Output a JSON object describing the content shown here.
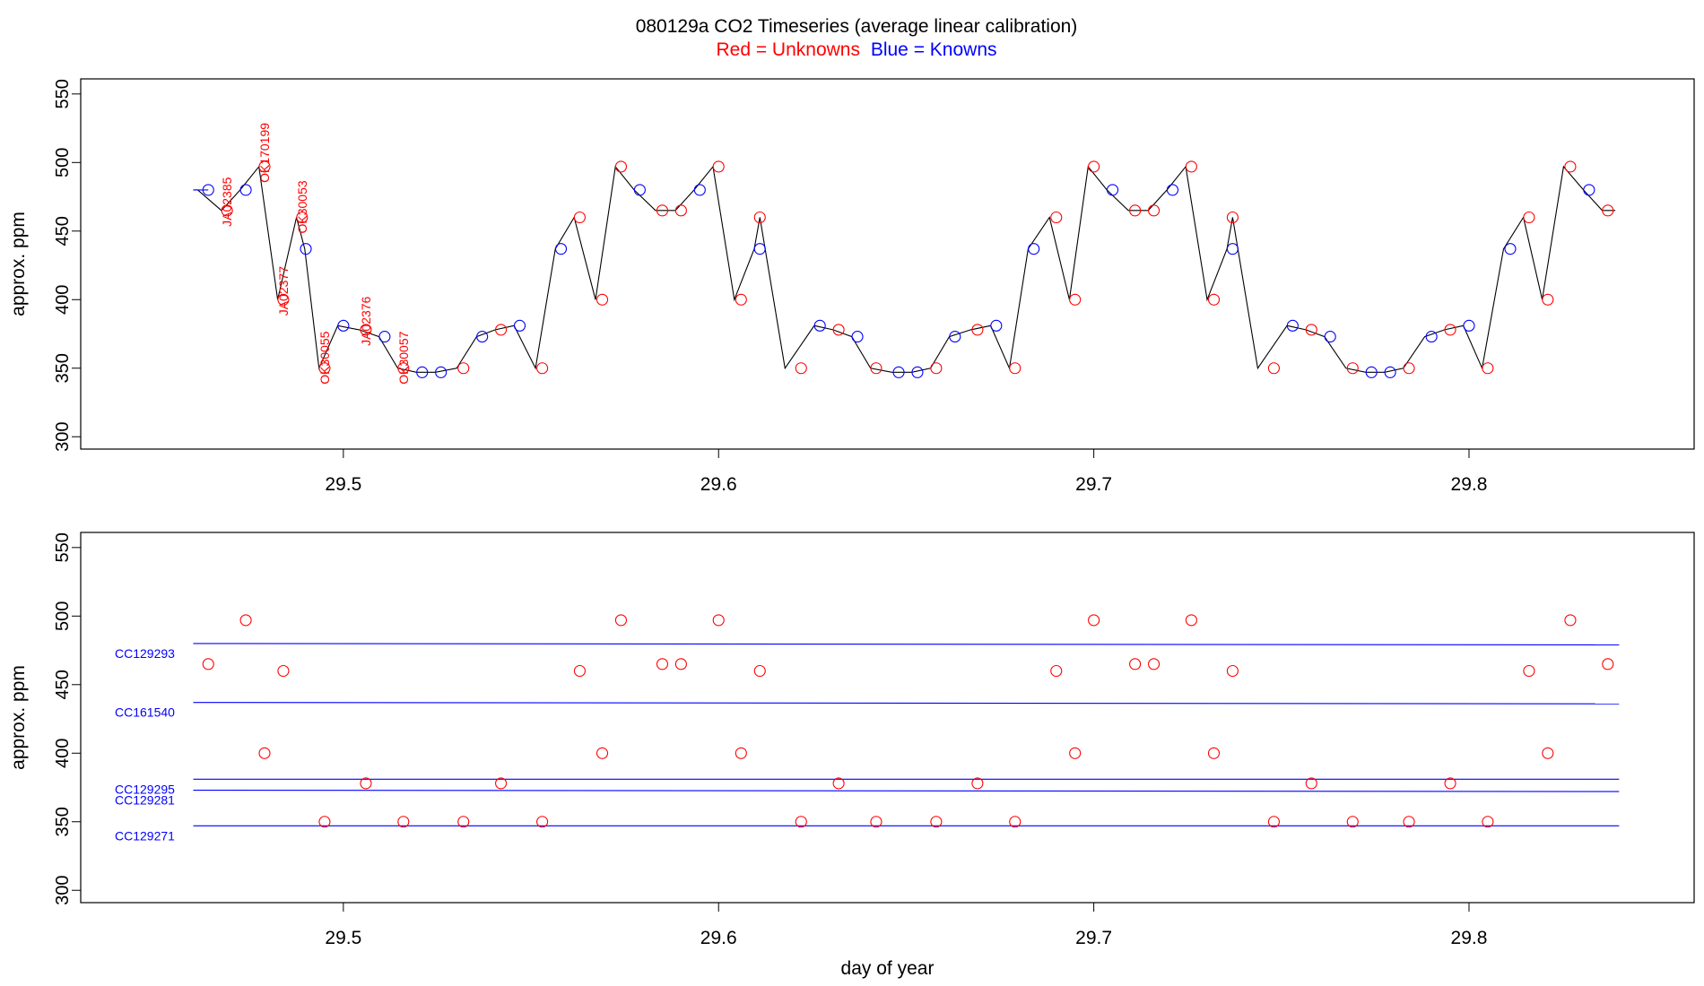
{
  "title": {
    "main": "080129a   CO2 Timeseries (average linear calibration)",
    "legend_red": "Red = Unknowns",
    "legend_blue": "Blue = Knowns"
  },
  "colors": {
    "unknown": "#ff0000",
    "known": "#0000ff",
    "trace": "#000000"
  },
  "chart_data": [
    {
      "type": "line",
      "panel": "top",
      "xlabel": "",
      "ylabel": "approx. ppm",
      "xlim": [
        29.43,
        29.86
      ],
      "ylim": [
        291,
        561
      ],
      "xticks": [
        29.5,
        29.6,
        29.7,
        29.8
      ],
      "yticks": [
        300,
        350,
        400,
        450,
        500,
        550
      ],
      "trace_start": [
        29.46,
        480
      ],
      "knowns": [
        [
          29.464,
          480
        ],
        [
          29.474,
          480
        ],
        [
          29.49,
          437
        ],
        [
          29.5,
          381
        ],
        [
          29.511,
          373
        ],
        [
          29.521,
          347
        ],
        [
          29.526,
          347
        ],
        [
          29.537,
          373
        ],
        [
          29.547,
          381
        ],
        [
          29.558,
          437
        ],
        [
          29.579,
          480
        ],
        [
          29.595,
          480
        ],
        [
          29.611,
          437
        ],
        [
          29.627,
          381
        ],
        [
          29.637,
          373
        ],
        [
          29.648,
          347
        ],
        [
          29.653,
          347
        ],
        [
          29.663,
          373
        ],
        [
          29.674,
          381
        ],
        [
          29.684,
          437
        ],
        [
          29.705,
          480
        ],
        [
          29.721,
          480
        ],
        [
          29.737,
          437
        ],
        [
          29.753,
          381
        ],
        [
          29.763,
          373
        ],
        [
          29.774,
          347
        ],
        [
          29.779,
          347
        ],
        [
          29.79,
          373
        ],
        [
          29.8,
          381
        ],
        [
          29.811,
          437
        ],
        [
          29.832,
          480
        ]
      ],
      "unknowns": [
        [
          29.469,
          465
        ],
        [
          29.479,
          497
        ],
        [
          29.484,
          400
        ],
        [
          29.489,
          460
        ],
        [
          29.495,
          350
        ],
        [
          29.506,
          378
        ],
        [
          29.516,
          350
        ],
        [
          29.532,
          350
        ],
        [
          29.542,
          378
        ],
        [
          29.553,
          350
        ],
        [
          29.563,
          460
        ],
        [
          29.569,
          400
        ],
        [
          29.574,
          497
        ],
        [
          29.585,
          465
        ],
        [
          29.59,
          465
        ],
        [
          29.6,
          497
        ],
        [
          29.606,
          400
        ],
        [
          29.611,
          460
        ],
        [
          29.622,
          350
        ],
        [
          29.632,
          378
        ],
        [
          29.642,
          350
        ],
        [
          29.658,
          350
        ],
        [
          29.669,
          378
        ],
        [
          29.679,
          350
        ],
        [
          29.69,
          460
        ],
        [
          29.695,
          400
        ],
        [
          29.7,
          497
        ],
        [
          29.711,
          465
        ],
        [
          29.716,
          465
        ],
        [
          29.726,
          497
        ],
        [
          29.732,
          400
        ],
        [
          29.737,
          460
        ],
        [
          29.748,
          350
        ],
        [
          29.758,
          378
        ],
        [
          29.769,
          350
        ],
        [
          29.784,
          350
        ],
        [
          29.795,
          378
        ],
        [
          29.805,
          350
        ],
        [
          29.816,
          460
        ],
        [
          29.821,
          400
        ],
        [
          29.827,
          497
        ],
        [
          29.837,
          465
        ]
      ],
      "sample_labels": [
        {
          "text": "JA02385",
          "x": 29.469
        },
        {
          "text": "OK170199",
          "x": 29.479
        },
        {
          "text": "JA02377",
          "x": 29.484
        },
        {
          "text": "OK30053",
          "x": 29.489
        },
        {
          "text": "OK30055",
          "x": 29.495
        },
        {
          "text": "JA02376",
          "x": 29.506
        },
        {
          "text": "OK30057",
          "x": 29.516
        }
      ]
    },
    {
      "type": "scatter",
      "panel": "bottom",
      "xlabel": "day of year",
      "ylabel": "approx. ppm",
      "xlim": [
        29.43,
        29.86
      ],
      "ylim": [
        291,
        561
      ],
      "xticks": [
        29.5,
        29.6,
        29.7,
        29.8
      ],
      "yticks": [
        300,
        350,
        400,
        450,
        500,
        550
      ],
      "reference_lines": [
        {
          "name": "CC129293",
          "y_start": 480,
          "y_end": 479
        },
        {
          "name": "CC161540",
          "y_start": 437,
          "y_end": 436
        },
        {
          "name": "CC129295",
          "y_start": 381,
          "y_end": 381
        },
        {
          "name": "CC129281",
          "y_start": 373,
          "y_end": 372
        },
        {
          "name": "CC129271",
          "y_start": 347,
          "y_end": 347
        }
      ],
      "reference_x_range": [
        29.46,
        29.84
      ],
      "unknowns": [
        [
          29.464,
          465
        ],
        [
          29.474,
          497
        ],
        [
          29.479,
          400
        ],
        [
          29.484,
          460
        ],
        [
          29.495,
          350
        ],
        [
          29.506,
          378
        ],
        [
          29.516,
          350
        ],
        [
          29.532,
          350
        ],
        [
          29.542,
          378
        ],
        [
          29.553,
          350
        ],
        [
          29.563,
          460
        ],
        [
          29.569,
          400
        ],
        [
          29.574,
          497
        ],
        [
          29.585,
          465
        ],
        [
          29.59,
          465
        ],
        [
          29.6,
          497
        ],
        [
          29.606,
          400
        ],
        [
          29.611,
          460
        ],
        [
          29.622,
          350
        ],
        [
          29.632,
          378
        ],
        [
          29.642,
          350
        ],
        [
          29.658,
          350
        ],
        [
          29.669,
          378
        ],
        [
          29.679,
          350
        ],
        [
          29.69,
          460
        ],
        [
          29.695,
          400
        ],
        [
          29.7,
          497
        ],
        [
          29.711,
          465
        ],
        [
          29.716,
          465
        ],
        [
          29.726,
          497
        ],
        [
          29.732,
          400
        ],
        [
          29.737,
          460
        ],
        [
          29.748,
          350
        ],
        [
          29.758,
          378
        ],
        [
          29.769,
          350
        ],
        [
          29.784,
          350
        ],
        [
          29.795,
          378
        ],
        [
          29.805,
          350
        ],
        [
          29.816,
          460
        ],
        [
          29.821,
          400
        ],
        [
          29.827,
          497
        ],
        [
          29.837,
          465
        ]
      ]
    }
  ]
}
